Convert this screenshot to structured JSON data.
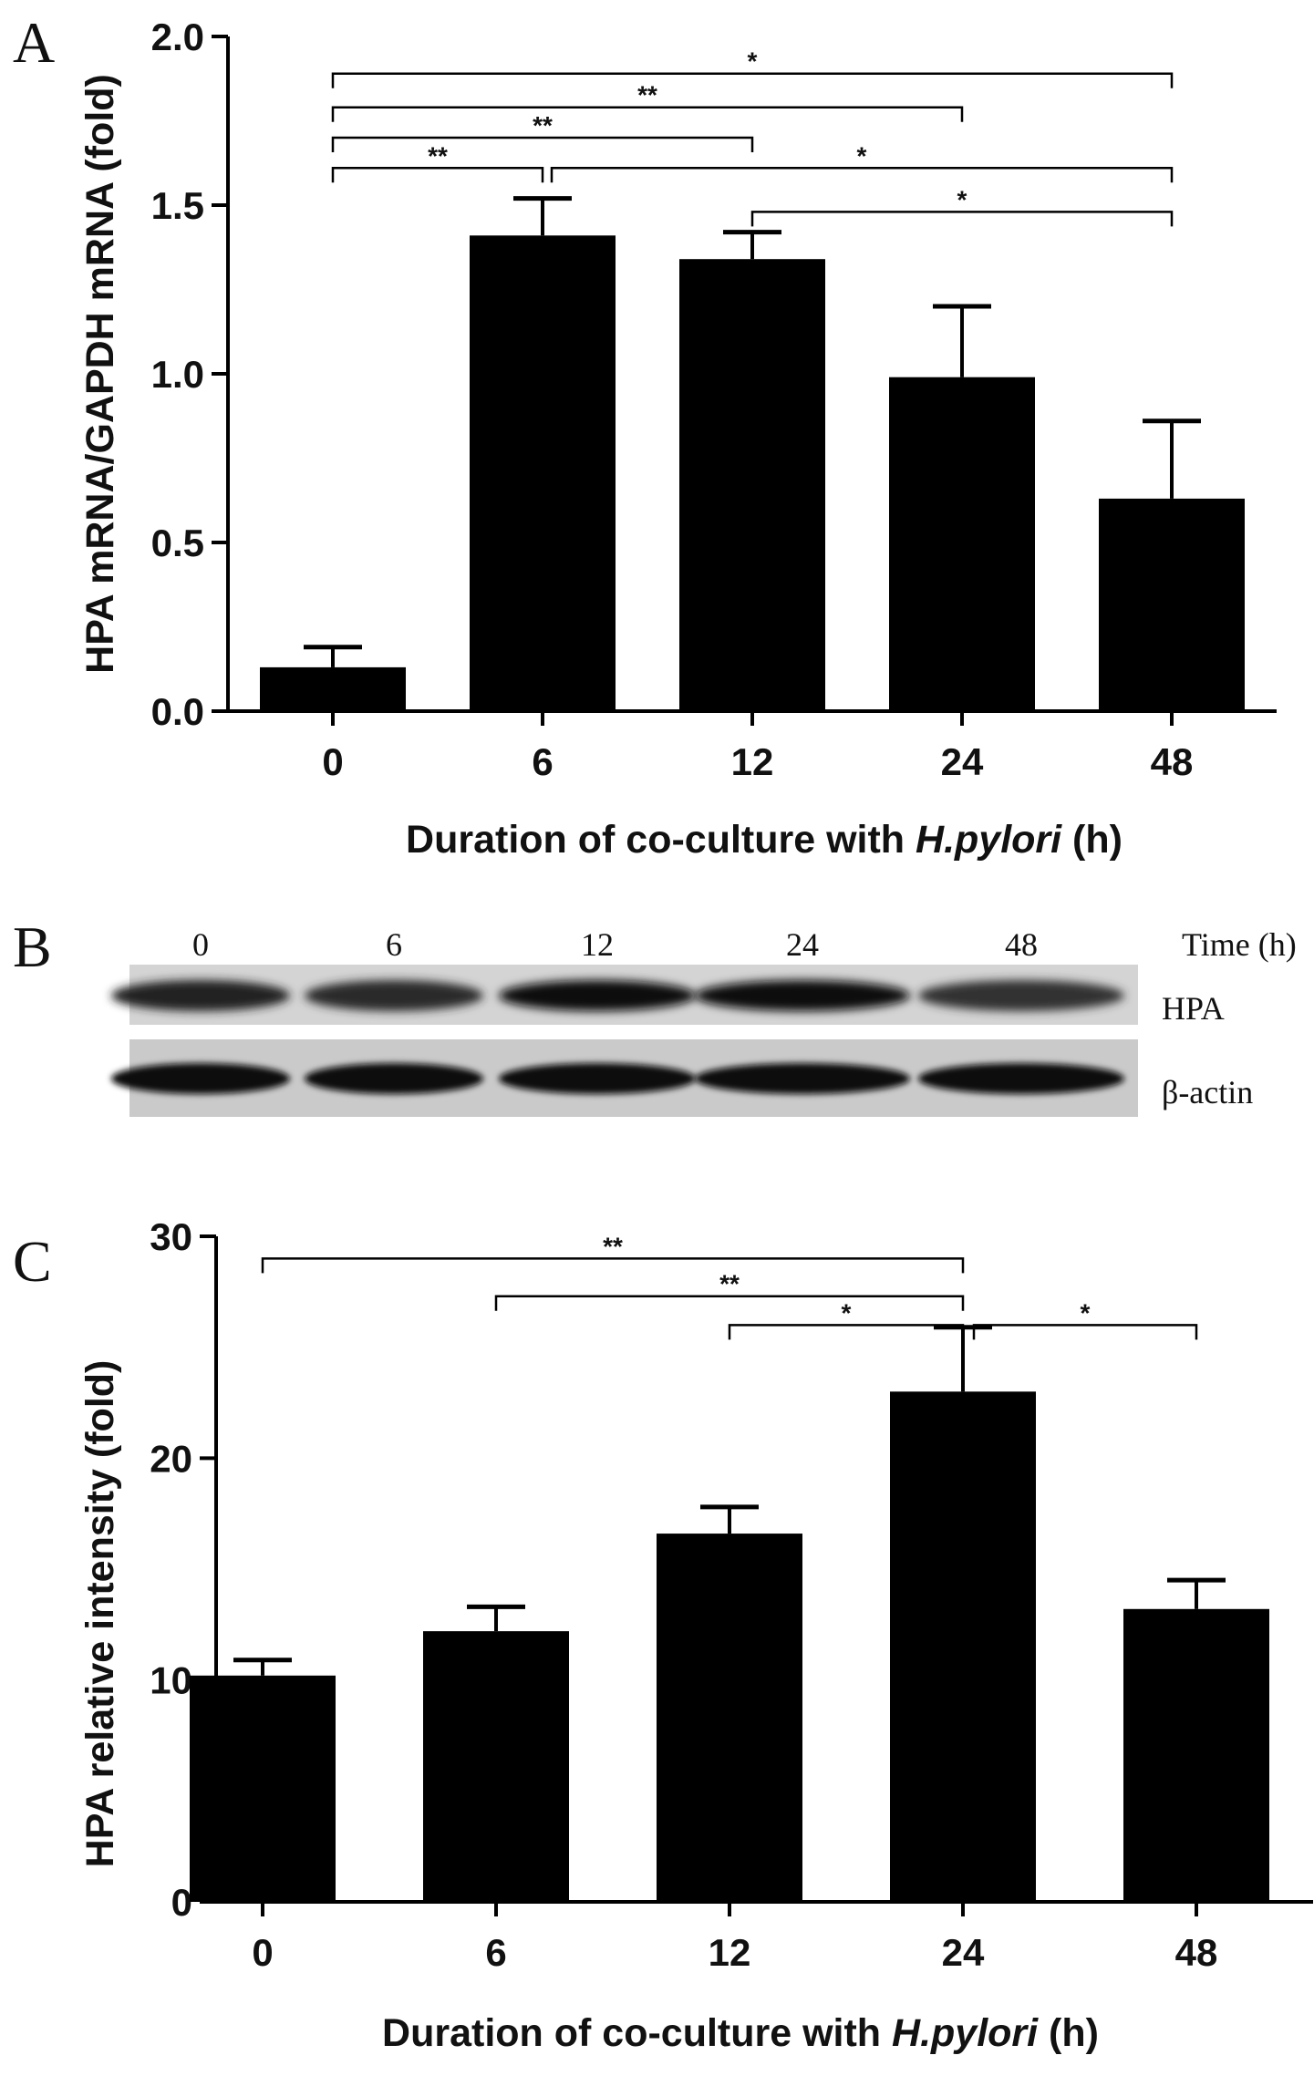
{
  "panels": {
    "a": {
      "letter": "A"
    },
    "b": {
      "letter": "B"
    },
    "c": {
      "letter": "C"
    }
  },
  "chart_data": [
    {
      "id": "A",
      "type": "bar",
      "categories": [
        "0",
        "6",
        "12",
        "24",
        "48"
      ],
      "values": [
        0.13,
        1.41,
        1.34,
        0.99,
        0.63
      ],
      "errors": [
        0.06,
        0.11,
        0.08,
        0.21,
        0.23
      ],
      "ylabel": "HPA mRNA/GAPDH mRNA (fold)",
      "xlabel_parts": [
        "Duration of co-culture with ",
        "H.pylori",
        " (h)"
      ],
      "ylim": [
        0,
        2.0
      ],
      "yticks": [
        "0.0",
        "0.5",
        "1.0",
        "1.5",
        "2.0"
      ],
      "ytick_values": [
        0,
        0.5,
        1.0,
        1.5,
        2.0
      ],
      "bar_color": "#000000",
      "grid": false,
      "significance": [
        {
          "from": 0,
          "to": 4,
          "label": "*",
          "level": 1.89
        },
        {
          "from": 0,
          "to": 3,
          "label": "**",
          "level": 1.79
        },
        {
          "from": 0,
          "to": 2,
          "label": "**",
          "level": 1.7
        },
        {
          "from": 0,
          "to": 1,
          "label": "**",
          "level": 1.61
        },
        {
          "from": 1,
          "to": 4,
          "label": "*",
          "level": 1.61
        },
        {
          "from": 2,
          "to": 4,
          "label": "*",
          "level": 1.48
        }
      ]
    },
    {
      "id": "C",
      "type": "bar",
      "categories": [
        "0",
        "6",
        "12",
        "24",
        "48"
      ],
      "values": [
        10.2,
        12.2,
        16.6,
        23.0,
        13.2
      ],
      "errors": [
        0.7,
        1.1,
        1.2,
        2.9,
        1.3
      ],
      "ylabel": "HPA relative intensity (fold)",
      "xlabel_parts": [
        "Duration of co-culture with ",
        "H.pylori",
        " (h)"
      ],
      "ylim": [
        0,
        30
      ],
      "yticks": [
        "0",
        "10",
        "20",
        "30"
      ],
      "ytick_values": [
        0,
        10,
        20,
        30
      ],
      "bar_color": "#000000",
      "grid": false,
      "significance": [
        {
          "from": 0,
          "to": 3,
          "label": "**",
          "level": 29.0
        },
        {
          "from": 1,
          "to": 3,
          "label": "**",
          "level": 27.3
        },
        {
          "from": 2,
          "to": 3,
          "label": "*",
          "level": 26.0
        },
        {
          "from": 3,
          "to": 4,
          "label": "*",
          "level": 26.0
        }
      ]
    }
  ],
  "blot": {
    "time_header": "Time (h)",
    "lanes": [
      "0",
      "6",
      "12",
      "24",
      "48"
    ],
    "rows": [
      {
        "label": "HPA",
        "intensity": [
          0.8,
          0.7,
          0.95,
          1.0,
          0.65
        ]
      },
      {
        "label": "β-actin",
        "intensity": [
          1.0,
          1.0,
          0.95,
          1.0,
          1.0
        ]
      }
    ]
  }
}
